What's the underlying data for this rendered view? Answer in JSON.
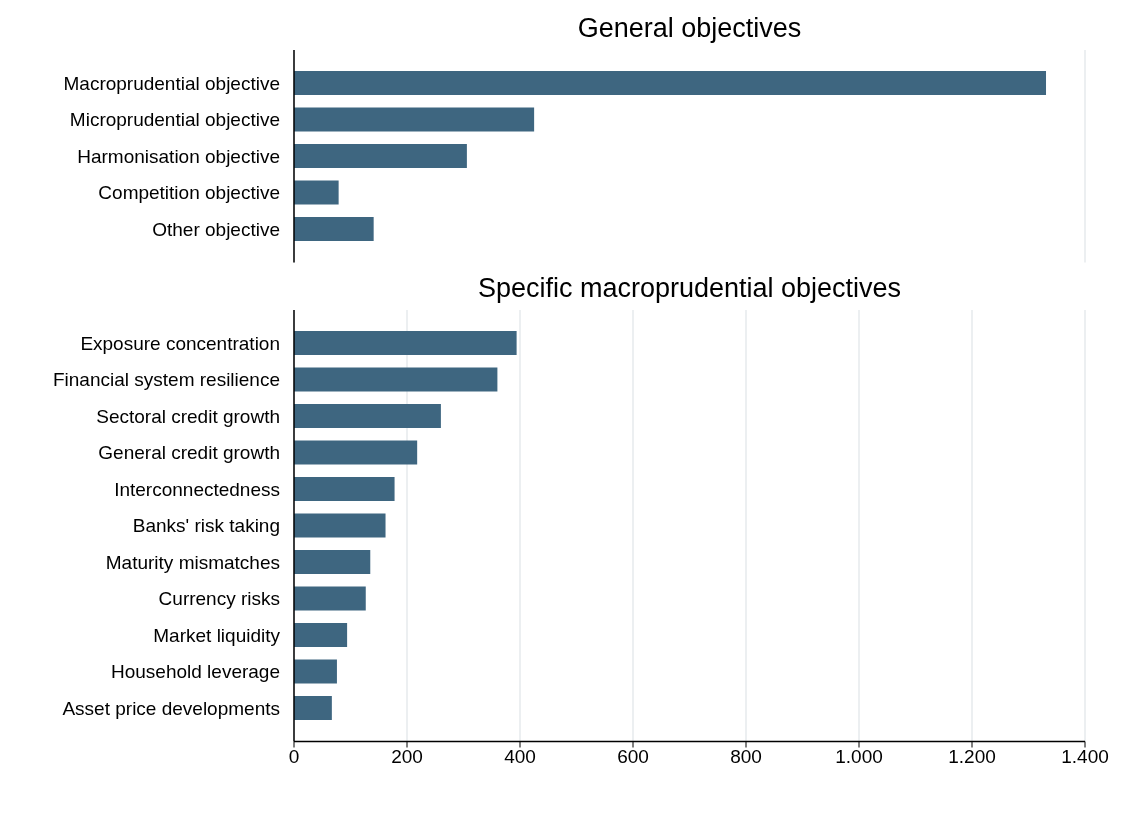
{
  "chart_data": [
    {
      "type": "bar",
      "orientation": "horizontal",
      "title": "General objectives",
      "categories": [
        "Macroprudential objective",
        "Microprudential objective",
        "Harmonisation objective",
        "Competition objective",
        "Other objective"
      ],
      "values": [
        1331,
        425,
        306,
        79,
        141
      ],
      "color": "#3e6680",
      "xlim": [
        0,
        1400
      ],
      "xticks": [
        0,
        200,
        400,
        600,
        800,
        1000,
        1200,
        1400
      ],
      "grid": "x",
      "tick_labels": "y"
    },
    {
      "type": "bar",
      "orientation": "horizontal",
      "title": "Specific macroprudential objectives",
      "categories": [
        "Exposure concentration",
        "Financial system resilience",
        "Sectoral credit growth",
        "General credit growth",
        "Interconnectedness",
        "Banks' risk taking",
        "Maturity mismatches",
        "Currency risks",
        "Market liquidity",
        "Household leverage",
        "Asset price developments"
      ],
      "values": [
        394,
        360,
        260,
        218,
        178,
        162,
        135,
        127,
        94,
        76,
        67
      ],
      "color": "#3e6680",
      "xlim": [
        0,
        1400
      ],
      "xticks": [
        0,
        200,
        400,
        600,
        800,
        {
          "value": 1000,
          "label": "1.000"
        },
        {
          "value": 1200,
          "label": "1.200"
        },
        {
          "value": 1400,
          "label": "1.400"
        }
      ],
      "grid": "x"
    }
  ]
}
